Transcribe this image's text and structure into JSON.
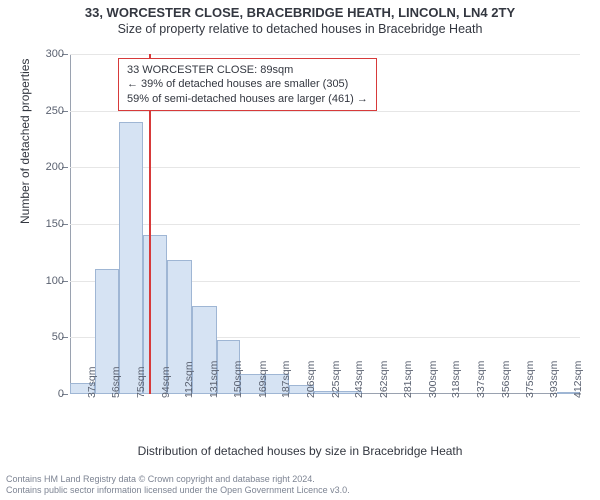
{
  "title": "33, WORCESTER CLOSE, BRACEBRIDGE HEATH, LINCOLN, LN4 2TY",
  "subtitle": "Size of property relative to detached houses in Bracebridge Heath",
  "y_axis_title": "Number of detached properties",
  "x_axis_title": "Distribution of detached houses by size in Bracebridge Heath",
  "footer_line1": "Contains HM Land Registry data © Crown copyright and database right 2024.",
  "footer_line2": "Contains public sector information licensed under the Open Government Licence v3.0.",
  "info_box": {
    "line1": "33 WORCESTER CLOSE: 89sqm",
    "line2": "← 39% of detached houses are smaller (305)",
    "line3": "59% of semi-detached houses are larger (461) →"
  },
  "chart": {
    "type": "histogram",
    "ylim": [
      0,
      300
    ],
    "y_ticks": [
      0,
      50,
      100,
      150,
      200,
      250,
      300
    ],
    "marker_value": 89,
    "marker_color": "#d73a3a",
    "bar_fill": "#d6e3f3",
    "bar_border": "#9fb6d4",
    "grid_color": "#e6e6e6",
    "axis_color": "#9aa2b0",
    "background_color": "#ffffff",
    "x_range": [
      28,
      421
    ],
    "categories": [
      "37sqm",
      "56sqm",
      "75sqm",
      "94sqm",
      "112sqm",
      "131sqm",
      "150sqm",
      "169sqm",
      "187sqm",
      "206sqm",
      "225sqm",
      "243sqm",
      "262sqm",
      "281sqm",
      "300sqm",
      "318sqm",
      "337sqm",
      "356sqm",
      "375sqm",
      "393sqm",
      "412sqm"
    ],
    "x_tick_positions": [
      37,
      56,
      75,
      94,
      112,
      131,
      150,
      169,
      187,
      206,
      225,
      243,
      262,
      281,
      300,
      318,
      337,
      356,
      375,
      393,
      412
    ],
    "bars": [
      {
        "x0": 28,
        "x1": 47,
        "value": 10
      },
      {
        "x0": 47,
        "x1": 66,
        "value": 110
      },
      {
        "x0": 66,
        "x1": 84,
        "value": 240
      },
      {
        "x0": 84,
        "x1": 103,
        "value": 140
      },
      {
        "x0": 103,
        "x1": 122,
        "value": 118
      },
      {
        "x0": 122,
        "x1": 141,
        "value": 78
      },
      {
        "x0": 141,
        "x1": 159,
        "value": 48
      },
      {
        "x0": 159,
        "x1": 178,
        "value": 18
      },
      {
        "x0": 178,
        "x1": 197,
        "value": 18
      },
      {
        "x0": 197,
        "x1": 216,
        "value": 8
      },
      {
        "x0": 216,
        "x1": 234,
        "value": 3
      },
      {
        "x0": 234,
        "x1": 253,
        "value": 3
      },
      {
        "x0": 253,
        "x1": 272,
        "value": 0
      },
      {
        "x0": 272,
        "x1": 290,
        "value": 0
      },
      {
        "x0": 290,
        "x1": 309,
        "value": 0
      },
      {
        "x0": 309,
        "x1": 328,
        "value": 0
      },
      {
        "x0": 328,
        "x1": 347,
        "value": 0
      },
      {
        "x0": 347,
        "x1": 365,
        "value": 0
      },
      {
        "x0": 365,
        "x1": 384,
        "value": 0
      },
      {
        "x0": 384,
        "x1": 403,
        "value": 0
      },
      {
        "x0": 403,
        "x1": 421,
        "value": 2
      }
    ]
  }
}
